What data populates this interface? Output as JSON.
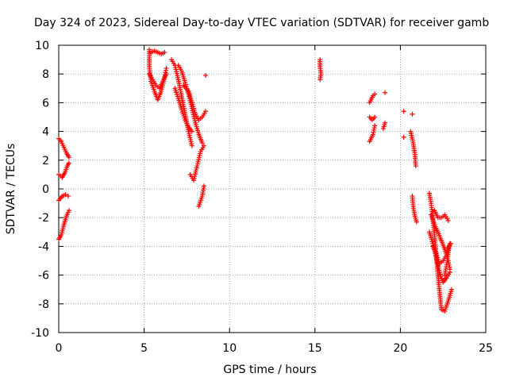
{
  "chart_data": {
    "type": "scatter",
    "title": "Day 324 of 2023, Sidereal Day-to-day VTEC variation (SDTVAR) for receiver gamb",
    "xlabel": "GPS time / hours",
    "ylabel": "SDTVAR / TECUs",
    "xlim": [
      0,
      25
    ],
    "ylim": [
      -10,
      10
    ],
    "xticks": [
      0,
      5,
      10,
      15,
      20,
      25
    ],
    "yticks": [
      -10,
      -8,
      -6,
      -4,
      -2,
      0,
      2,
      4,
      6,
      8,
      10
    ],
    "grid": true,
    "marker": "+",
    "marker_color": "#ff0000",
    "series": [
      {
        "name": "SDTVAR",
        "tracks": [
          [
            [
              0.0,
              3.5
            ],
            [
              0.15,
              3.3
            ],
            [
              0.3,
              2.9
            ],
            [
              0.45,
              2.5
            ],
            [
              0.6,
              2.2
            ]
          ],
          [
            [
              0.0,
              1.0
            ],
            [
              0.2,
              0.8
            ],
            [
              0.35,
              1.1
            ],
            [
              0.5,
              1.6
            ],
            [
              0.6,
              1.8
            ]
          ],
          [
            [
              0.0,
              -0.8
            ],
            [
              0.2,
              -0.5
            ],
            [
              0.4,
              -0.4
            ],
            [
              0.55,
              -0.5
            ]
          ],
          [
            [
              0.0,
              -3.5
            ],
            [
              0.15,
              -3.2
            ],
            [
              0.3,
              -2.5
            ],
            [
              0.45,
              -1.9
            ],
            [
              0.6,
              -1.5
            ]
          ],
          [
            [
              5.3,
              9.7
            ],
            [
              5.3,
              8.5
            ],
            [
              5.4,
              7.5
            ],
            [
              5.6,
              6.8
            ],
            [
              5.8,
              6.2
            ],
            [
              6.0,
              6.8
            ],
            [
              6.2,
              7.8
            ],
            [
              6.3,
              8.4
            ]
          ],
          [
            [
              5.4,
              9.5
            ],
            [
              5.6,
              9.6
            ],
            [
              5.8,
              9.5
            ],
            [
              6.0,
              9.4
            ],
            [
              6.2,
              9.5
            ]
          ],
          [
            [
              5.3,
              8.0
            ],
            [
              5.5,
              7.6
            ],
            [
              5.7,
              7.2
            ],
            [
              5.9,
              7.0
            ],
            [
              6.1,
              7.5
            ],
            [
              6.3,
              8.0
            ]
          ],
          [
            [
              6.6,
              9.0
            ],
            [
              6.8,
              8.6
            ],
            [
              7.0,
              7.6
            ],
            [
              7.2,
              6.4
            ],
            [
              7.4,
              5.2
            ],
            [
              7.6,
              4.0
            ],
            [
              7.8,
              3.0
            ]
          ],
          [
            [
              7.0,
              8.6
            ],
            [
              7.2,
              8.2
            ],
            [
              7.4,
              7.4
            ],
            [
              7.6,
              6.6
            ],
            [
              7.8,
              5.6
            ],
            [
              8.0,
              4.6
            ],
            [
              8.2,
              3.8
            ],
            [
              8.4,
              3.2
            ]
          ],
          [
            [
              6.8,
              7.0
            ],
            [
              7.0,
              6.3
            ],
            [
              7.2,
              5.5
            ],
            [
              7.4,
              4.8
            ],
            [
              7.6,
              4.3
            ],
            [
              7.8,
              4.0
            ]
          ],
          [
            [
              7.3,
              7.2
            ],
            [
              7.6,
              6.8
            ],
            [
              7.8,
              6.0
            ],
            [
              8.0,
              5.2
            ],
            [
              8.2,
              4.8
            ],
            [
              8.4,
              5.0
            ],
            [
              8.6,
              5.4
            ]
          ],
          [
            [
              7.7,
              1.0
            ],
            [
              7.9,
              0.6
            ],
            [
              8.1,
              1.6
            ],
            [
              8.3,
              2.6
            ],
            [
              8.5,
              3.0
            ]
          ],
          [
            [
              8.2,
              -1.2
            ],
            [
              8.4,
              -0.5
            ],
            [
              8.5,
              0.2
            ]
          ],
          [
            [
              8.6,
              7.9
            ]
          ],
          [
            [
              15.3,
              9.0
            ],
            [
              15.3,
              8.5
            ],
            [
              15.35,
              8.0
            ],
            [
              15.3,
              7.6
            ]
          ],
          [
            [
              18.2,
              3.3
            ],
            [
              18.4,
              3.8
            ],
            [
              18.5,
              4.4
            ]
          ],
          [
            [
              18.2,
              5.0
            ],
            [
              18.35,
              4.8
            ],
            [
              18.5,
              5.0
            ]
          ],
          [
            [
              18.2,
              6.0
            ],
            [
              18.4,
              6.5
            ],
            [
              18.5,
              6.6
            ]
          ],
          [
            [
              19.0,
              4.2
            ],
            [
              19.1,
              4.6
            ]
          ],
          [
            [
              19.1,
              6.7
            ]
          ],
          [
            [
              20.2,
              5.4
            ]
          ],
          [
            [
              20.2,
              3.6
            ]
          ],
          [
            [
              20.7,
              5.2
            ]
          ],
          [
            [
              20.6,
              4.0
            ],
            [
              20.75,
              3.2
            ],
            [
              20.85,
              2.4
            ],
            [
              20.9,
              1.6
            ]
          ],
          [
            [
              20.7,
              -0.5
            ],
            [
              20.75,
              -1.2
            ],
            [
              20.85,
              -1.9
            ],
            [
              20.95,
              -2.3
            ]
          ],
          [
            [
              21.7,
              -0.3
            ],
            [
              21.8,
              -1.0
            ],
            [
              21.9,
              -2.0
            ],
            [
              22.0,
              -3.2
            ],
            [
              22.1,
              -4.6
            ],
            [
              22.2,
              -6.0
            ],
            [
              22.3,
              -7.2
            ],
            [
              22.4,
              -8.4
            ],
            [
              22.6,
              -8.5
            ],
            [
              22.8,
              -7.8
            ],
            [
              23.0,
              -7.0
            ]
          ],
          [
            [
              21.8,
              -1.8
            ],
            [
              22.0,
              -2.5
            ],
            [
              22.2,
              -3.0
            ],
            [
              22.4,
              -3.6
            ],
            [
              22.6,
              -4.2
            ],
            [
              22.8,
              -5.0
            ],
            [
              22.9,
              -5.6
            ]
          ],
          [
            [
              21.7,
              -3.0
            ],
            [
              21.9,
              -3.8
            ],
            [
              22.1,
              -4.8
            ],
            [
              22.3,
              -5.8
            ],
            [
              22.5,
              -6.5
            ],
            [
              22.7,
              -6.2
            ],
            [
              22.9,
              -5.8
            ]
          ],
          [
            [
              22.0,
              -1.5
            ],
            [
              22.2,
              -2.0
            ],
            [
              22.4,
              -2.0
            ],
            [
              22.6,
              -1.8
            ],
            [
              22.8,
              -2.2
            ]
          ],
          [
            [
              21.9,
              -4.0
            ],
            [
              22.1,
              -4.5
            ],
            [
              22.3,
              -5.2
            ],
            [
              22.5,
              -5.0
            ],
            [
              22.7,
              -4.6
            ],
            [
              22.9,
              -3.8
            ]
          ],
          [
            [
              22.6,
              -6.0
            ],
            [
              22.75,
              -5.0
            ],
            [
              22.85,
              -4.0
            ],
            [
              22.95,
              -3.8
            ]
          ]
        ]
      }
    ]
  }
}
